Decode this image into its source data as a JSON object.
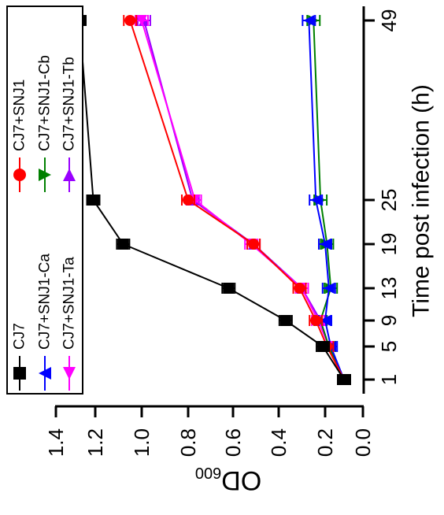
{
  "chart_data": {
    "type": "line",
    "orientation": "rotated-90",
    "x": [
      1,
      5,
      9,
      13,
      19,
      25,
      49
    ],
    "x_ticks": [
      1,
      5,
      9,
      13,
      19,
      25,
      49
    ],
    "xlabel": "Time post infection (h)",
    "ylabel_main": "OD",
    "ylabel_sub": "600",
    "ylim": [
      0.0,
      1.4
    ],
    "y_ticks": [
      "0.0",
      "0.2",
      "0.4",
      "0.6",
      "0.8",
      "1.0",
      "1.2",
      "1.4"
    ],
    "error_bars": true,
    "grid": false,
    "legend_position": "top-left",
    "series": [
      {
        "name": "CJ7",
        "color": "#000000",
        "marker": "square",
        "values": [
          0.1,
          0.21,
          0.37,
          0.62,
          1.08,
          1.21,
          1.28
        ]
      },
      {
        "name": "CJ7+SNJ1",
        "color": "#ff0000",
        "marker": "circle",
        "values": [
          0.1,
          0.19,
          0.24,
          0.31,
          0.51,
          0.8,
          1.05
        ]
      },
      {
        "name": "CJ7+SNJ1-Ca",
        "color": "#0000ff",
        "marker": "triangle-left",
        "values": [
          0.1,
          0.17,
          0.2,
          0.18,
          0.2,
          0.24,
          0.27
        ]
      },
      {
        "name": "CJ7+SNJ1-Cb",
        "color": "#008000",
        "marker": "triangle-right",
        "values": [
          0.1,
          0.18,
          0.22,
          0.17,
          0.19,
          0.22,
          0.25
        ]
      },
      {
        "name": "CJ7+SNJ1-Ta",
        "color": "#ff00ff",
        "marker": "triangle-down",
        "values": [
          0.1,
          0.18,
          0.23,
          0.3,
          0.52,
          0.77,
          1.0
        ]
      },
      {
        "name": "CJ7+SNJ1-Tb",
        "color": "#9900ff",
        "marker": "triangle-up",
        "values": [
          0.1,
          0.18,
          0.22,
          0.3,
          0.51,
          0.78,
          0.99
        ]
      }
    ]
  }
}
